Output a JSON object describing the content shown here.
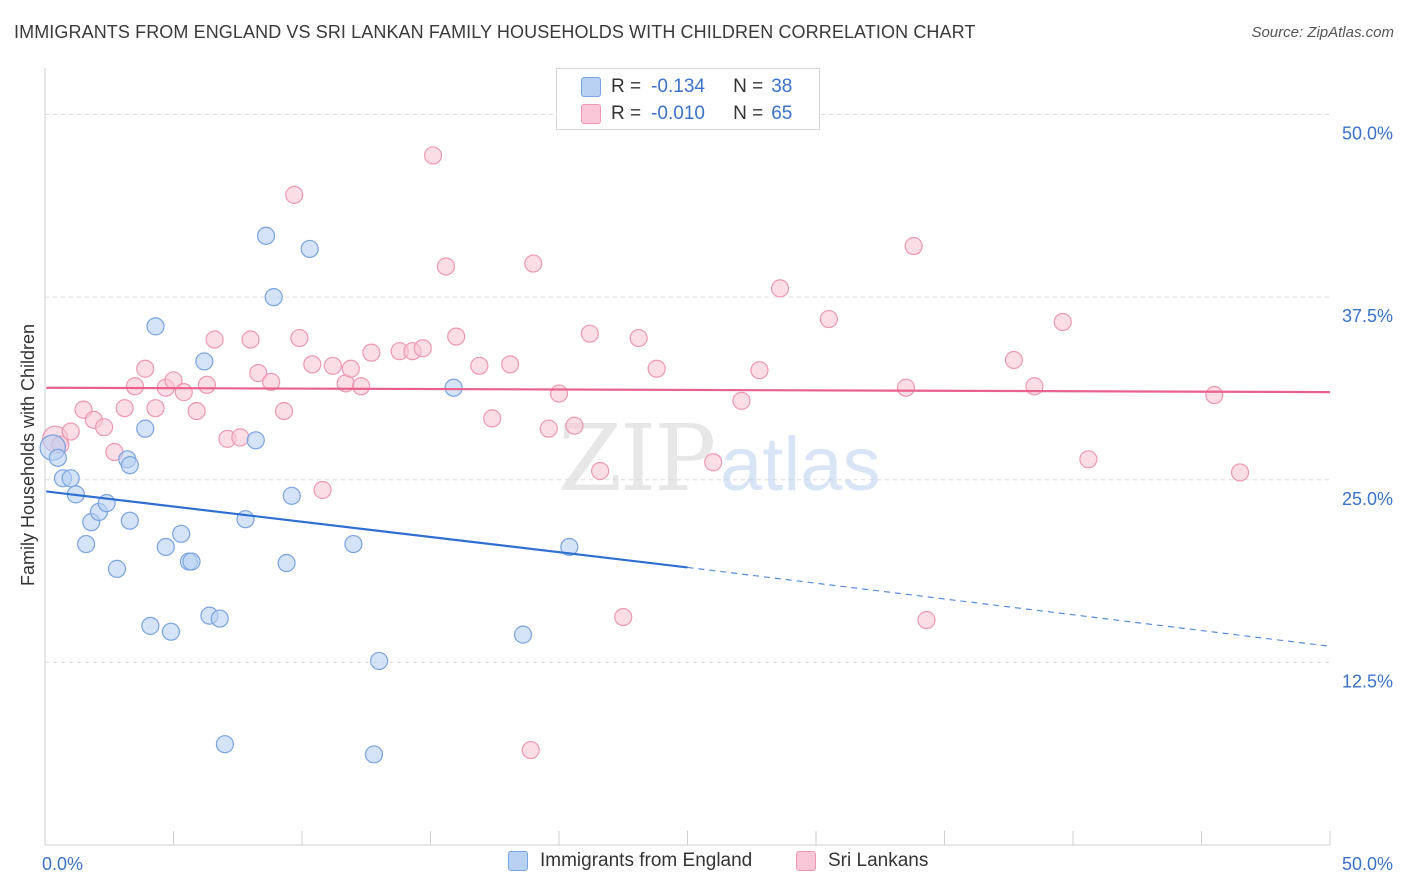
{
  "title": "IMMIGRANTS FROM ENGLAND VS SRI LANKAN FAMILY HOUSEHOLDS WITH CHILDREN CORRELATION CHART",
  "source": "Source: ZipAtlas.com",
  "watermark": {
    "zip": "ZIP",
    "atlas": "atlas"
  },
  "inset_legend": [
    {
      "r_label": "R =",
      "r_value": "-0.134",
      "n_label": "N =",
      "n_value": "38"
    },
    {
      "r_label": "R =",
      "r_value": "-0.010",
      "n_label": "N =",
      "n_value": "65"
    }
  ],
  "chart_data": {
    "type": "scatter",
    "ylabel": "Family Households with Children",
    "xlim": [
      0,
      50
    ],
    "ylim": [
      0,
      52.5
    ],
    "x_tick_labels": [
      "0.0%",
      "50.0%"
    ],
    "y_ticks": [
      12.5,
      25.0,
      37.5,
      50.0
    ],
    "y_tick_labels": [
      "12.5%",
      "25.0%",
      "37.5%",
      "50.0%"
    ],
    "grid": true,
    "legend_placement": "bottom-center",
    "colors": {
      "england_fill": "#b8d0f2",
      "england_stroke": "#7aa3e0",
      "england_line": "#2f6fd0",
      "srilanka_fill": "#f8c6d6",
      "srilanka_stroke": "#ec98b3",
      "srilanka_line": "#e8628d",
      "tick_label": "#3b72c8"
    },
    "series": [
      {
        "name": "Immigrants from England",
        "key": "england",
        "r": -0.134,
        "n": 38,
        "trend": {
          "x0": 0.05,
          "y0": 24.2,
          "x1": 25.0,
          "y1": 19.0,
          "dash_x1": 50.0,
          "dash_y1": 13.6
        },
        "points": [
          [
            0.3,
            27.2,
            2.0
          ],
          [
            0.5,
            26.5,
            1.0
          ],
          [
            0.7,
            25.1,
            1.0
          ],
          [
            1.0,
            25.1,
            1.0
          ],
          [
            1.2,
            24.0,
            1.0
          ],
          [
            1.6,
            20.6,
            1.0
          ],
          [
            1.8,
            22.1,
            1.0
          ],
          [
            2.1,
            22.8,
            1.0
          ],
          [
            2.4,
            23.4,
            1.0
          ],
          [
            2.8,
            18.9,
            1.0
          ],
          [
            3.2,
            26.4,
            1.0
          ],
          [
            3.3,
            22.2,
            1.0
          ],
          [
            3.3,
            26.0,
            1.0
          ],
          [
            3.9,
            28.5,
            1.0
          ],
          [
            4.1,
            15.0,
            1.0
          ],
          [
            4.3,
            35.5,
            1.0
          ],
          [
            4.7,
            20.4,
            1.0
          ],
          [
            4.9,
            14.6,
            1.0
          ],
          [
            5.3,
            21.3,
            1.0
          ],
          [
            5.6,
            19.4,
            1.0
          ],
          [
            5.7,
            19.4,
            1.0
          ],
          [
            6.2,
            33.1,
            1.0
          ],
          [
            6.4,
            15.7,
            1.0
          ],
          [
            6.8,
            15.5,
            1.0
          ],
          [
            7.0,
            6.9,
            1.0
          ],
          [
            7.8,
            22.3,
            1.0
          ],
          [
            8.2,
            27.7,
            1.0
          ],
          [
            8.6,
            41.7,
            1.0
          ],
          [
            8.9,
            37.5,
            1.0
          ],
          [
            9.4,
            19.3,
            1.0
          ],
          [
            9.6,
            23.9,
            1.0
          ],
          [
            10.3,
            40.8,
            1.0
          ],
          [
            12.0,
            20.6,
            1.0
          ],
          [
            12.8,
            6.2,
            1.0
          ],
          [
            13.0,
            12.6,
            1.0
          ],
          [
            15.9,
            31.3,
            1.0
          ],
          [
            18.6,
            14.4,
            1.0
          ],
          [
            20.4,
            20.4,
            1.0
          ]
        ]
      },
      {
        "name": "Sri Lankans",
        "key": "srilanka",
        "r": -0.01,
        "n": 65,
        "trend": {
          "x0": 0.05,
          "y0": 31.3,
          "x1": 50.0,
          "y1": 31.0
        },
        "points": [
          [
            0.4,
            27.8,
            2.0
          ],
          [
            0.6,
            27.4,
            1.0
          ],
          [
            1.0,
            28.3,
            1.0
          ],
          [
            1.5,
            29.8,
            1.0
          ],
          [
            1.9,
            29.1,
            1.0
          ],
          [
            2.3,
            28.6,
            1.0
          ],
          [
            2.7,
            26.9,
            1.0
          ],
          [
            3.1,
            29.9,
            1.0
          ],
          [
            3.5,
            31.4,
            1.0
          ],
          [
            3.9,
            32.6,
            1.0
          ],
          [
            4.3,
            29.9,
            1.0
          ],
          [
            4.7,
            31.3,
            1.0
          ],
          [
            5.0,
            31.8,
            1.0
          ],
          [
            5.4,
            31.0,
            1.0
          ],
          [
            5.9,
            29.7,
            1.0
          ],
          [
            6.3,
            31.5,
            1.0
          ],
          [
            6.6,
            34.6,
            1.0
          ],
          [
            7.1,
            27.8,
            1.0
          ],
          [
            7.6,
            27.9,
            1.0
          ],
          [
            8.0,
            34.6,
            1.0
          ],
          [
            8.3,
            32.3,
            1.0
          ],
          [
            8.8,
            31.7,
            1.0
          ],
          [
            9.3,
            29.7,
            1.0
          ],
          [
            9.7,
            44.5,
            1.0
          ],
          [
            9.9,
            34.7,
            1.0
          ],
          [
            10.4,
            32.9,
            1.0
          ],
          [
            10.8,
            24.3,
            1.0
          ],
          [
            11.2,
            32.8,
            1.0
          ],
          [
            11.7,
            31.6,
            1.0
          ],
          [
            11.9,
            32.6,
            1.0
          ],
          [
            12.3,
            31.4,
            1.0
          ],
          [
            12.7,
            33.7,
            1.0
          ],
          [
            13.8,
            33.8,
            1.0
          ],
          [
            14.3,
            33.8,
            1.0
          ],
          [
            14.7,
            34.0,
            1.0
          ],
          [
            15.1,
            47.2,
            1.0
          ],
          [
            15.6,
            39.6,
            1.0
          ],
          [
            16.0,
            34.8,
            1.0
          ],
          [
            16.9,
            32.8,
            1.0
          ],
          [
            17.4,
            29.2,
            1.0
          ],
          [
            18.1,
            32.9,
            1.0
          ],
          [
            18.9,
            6.5,
            1.0
          ],
          [
            19.0,
            39.8,
            1.0
          ],
          [
            19.6,
            28.5,
            1.0
          ],
          [
            20.0,
            30.9,
            1.0
          ],
          [
            20.6,
            28.7,
            1.0
          ],
          [
            21.2,
            35.0,
            1.0
          ],
          [
            21.6,
            25.6,
            1.0
          ],
          [
            22.5,
            15.6,
            1.0
          ],
          [
            23.1,
            34.7,
            1.0
          ],
          [
            23.8,
            32.6,
            1.0
          ],
          [
            26.0,
            26.2,
            1.0
          ],
          [
            27.1,
            30.4,
            1.0
          ],
          [
            27.8,
            32.5,
            1.0
          ],
          [
            28.6,
            38.1,
            1.0
          ],
          [
            30.5,
            36.0,
            1.0
          ],
          [
            33.5,
            31.3,
            1.0
          ],
          [
            33.8,
            41.0,
            1.0
          ],
          [
            34.3,
            15.4,
            1.0
          ],
          [
            37.7,
            33.2,
            1.0
          ],
          [
            38.5,
            31.4,
            1.0
          ],
          [
            39.6,
            35.8,
            1.0
          ],
          [
            40.6,
            26.4,
            1.0
          ],
          [
            45.5,
            30.8,
            1.0
          ],
          [
            46.5,
            25.5,
            1.0
          ]
        ]
      }
    ]
  }
}
